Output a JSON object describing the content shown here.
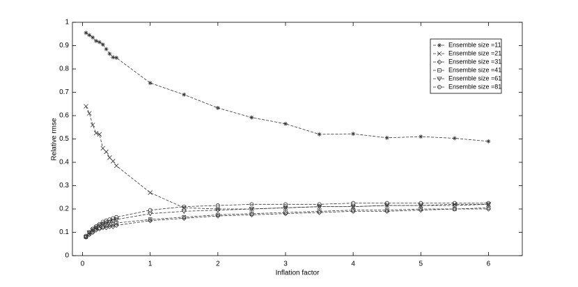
{
  "chart_data": {
    "type": "line",
    "xlabel": "Inflation factor",
    "ylabel": "Relative rmse",
    "x": [
      0.05,
      0.1,
      0.15,
      0.2,
      0.25,
      0.3,
      0.35,
      0.4,
      0.45,
      0.5,
      1,
      1.5,
      2,
      2.5,
      3,
      3.5,
      4,
      4.5,
      5,
      5.5,
      6
    ],
    "xlim": [
      -0.15,
      6.5
    ],
    "xticks": [
      0,
      1,
      2,
      3,
      4,
      5,
      6
    ],
    "ylim": [
      0,
      1
    ],
    "yticks": [
      0,
      0.1,
      0.2,
      0.3,
      0.4,
      0.5,
      0.6,
      0.7,
      0.8,
      0.9,
      1
    ],
    "legend": "upper right",
    "line_style": "dashed",
    "series": [
      {
        "name": "Ensemble size =11",
        "color": "#333333",
        "marker": "star",
        "values": [
          0.955,
          0.945,
          0.935,
          0.92,
          0.915,
          0.905,
          0.885,
          0.865,
          0.85,
          0.848,
          0.74,
          0.69,
          0.633,
          0.592,
          0.565,
          0.52,
          0.522,
          0.505,
          0.51,
          0.503,
          0.49
        ]
      },
      {
        "name": "Ensemble size =21",
        "color": "#333333",
        "marker": "x",
        "values": [
          0.64,
          0.61,
          0.56,
          0.525,
          0.52,
          0.46,
          0.445,
          0.42,
          0.405,
          0.385,
          0.27,
          0.205,
          0.2,
          0.2,
          0.205,
          0.21,
          0.21,
          0.215,
          0.215,
          0.22,
          0.22
        ]
      },
      {
        "name": "Ensemble size =31",
        "color": "#333333",
        "marker": "diamond",
        "values": [
          0.08,
          0.09,
          0.1,
          0.11,
          0.115,
          0.12,
          0.12,
          0.125,
          0.125,
          0.13,
          0.15,
          0.16,
          0.17,
          0.175,
          0.18,
          0.185,
          0.19,
          0.19,
          0.195,
          0.2,
          0.2
        ]
      },
      {
        "name": "Ensemble size =41",
        "color": "#333333",
        "marker": "square",
        "values": [
          0.08,
          0.095,
          0.105,
          0.115,
          0.12,
          0.125,
          0.13,
          0.135,
          0.135,
          0.14,
          0.155,
          0.165,
          0.175,
          0.18,
          0.185,
          0.19,
          0.195,
          0.195,
          0.2,
          0.2,
          0.205
        ]
      },
      {
        "name": "Ensemble size =61",
        "color": "#333333",
        "marker": "triangle-down",
        "values": [
          0.08,
          0.1,
          0.11,
          0.12,
          0.13,
          0.135,
          0.14,
          0.145,
          0.15,
          0.155,
          0.18,
          0.19,
          0.195,
          0.2,
          0.205,
          0.21,
          0.21,
          0.215,
          0.215,
          0.215,
          0.22
        ]
      },
      {
        "name": "Ensemble size =81",
        "color": "#333333",
        "marker": "circle",
        "values": [
          0.085,
          0.1,
          0.115,
          0.125,
          0.135,
          0.145,
          0.15,
          0.155,
          0.16,
          0.165,
          0.195,
          0.21,
          0.215,
          0.22,
          0.22,
          0.22,
          0.225,
          0.225,
          0.225,
          0.225,
          0.225
        ]
      }
    ]
  }
}
